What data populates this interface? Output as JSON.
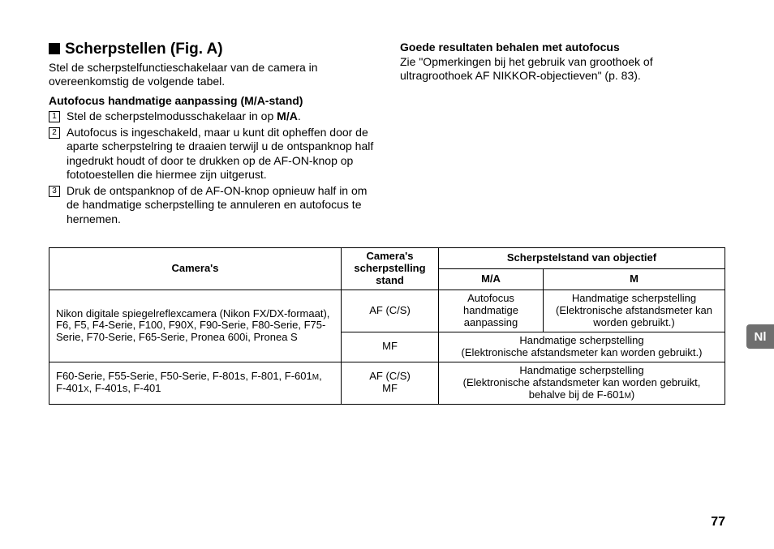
{
  "left": {
    "heading": "Scherpstellen (Fig. A)",
    "intro": "Stel de scherpstelfunctieschakelaar van de camera in overeenkomstig de volgende tabel.",
    "subheading": "Autofocus handmatige aanpassing (M/A-stand)",
    "steps": [
      {
        "num": "1",
        "text": "Stel de scherpstelmodusschakelaar in op ",
        "bold": "M/A",
        "suffix": "."
      },
      {
        "num": "2",
        "text": "Autofocus is ingeschakeld, maar u kunt dit opheffen door de aparte scherpstelring te draaien terwijl u de ontspanknop half ingedrukt houdt of door te drukken op de AF-ON-knop op fototoestellen die hiermee zijn uitgerust."
      },
      {
        "num": "3",
        "text": "Druk de ontspanknop of de AF-ON-knop opnieuw half in om de handmatige scherpstelling te annuleren en autofocus te hernemen."
      }
    ]
  },
  "right": {
    "subheading": "Goede resultaten behalen met autofocus",
    "text": "Zie \"Opmerkingen bij het gebruik van groothoek of ultragroothoek AF NIKKOR-objectieven\" (p. 83)."
  },
  "langTab": "Nl",
  "table": {
    "headers": {
      "cameras": "Camera's",
      "focusMode": "Camera's scherpstelling stand",
      "lensMode": "Scherpstelstand van objectief",
      "ma": "M/A",
      "m": "M"
    },
    "row1": {
      "cameras": "Nikon digitale spiegelreflexcamera (Nikon FX/DX-formaat), F6, F5, F4-Serie, F100, F90X, F90-Serie, F80-Serie, F75-Serie, F70-Serie, F65-Serie, Pronea 600i, Pronea S",
      "modeA": "AF (C/S)",
      "maA": "Autofocus handmatige aanpassing",
      "mA": "Handmatige scherpstelling (Elektronische afstandsmeter kan worden gebruikt.)",
      "modeB": "MF",
      "spanB": "Handmatige scherpstelling\n(Elektronische afstandsmeter kan worden gebruikt.)"
    },
    "row2": {
      "cameras_a": "F60-Serie, F55-Serie, F50-Serie, F-801s, F-801, F-601",
      "cameras_m1": "M",
      "cameras_b": ", F-401",
      "cameras_x": "X",
      "cameras_c": ", F-401s, F-401",
      "mode": "AF (C/S)\nMF",
      "span_a": "Handmatige scherpstelling\n(Elektronische afstandsmeter kan worden gebruikt, behalve bij de F-601",
      "span_m": "M",
      "span_b": ")"
    }
  },
  "pageNum": "77"
}
